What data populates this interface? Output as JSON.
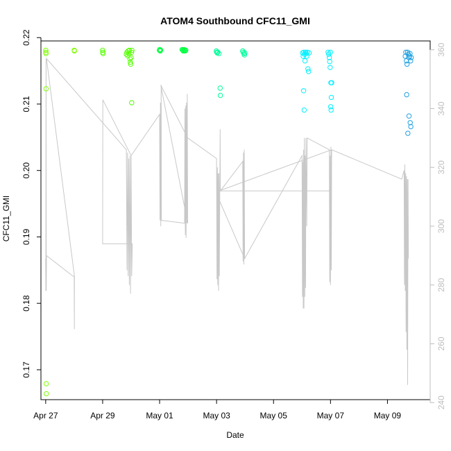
{
  "chart_data": {
    "type": "scatter",
    "title": "ATOM4 Southbound CFC11_GMI",
    "xlabel": "Date",
    "ylabel": "CFC11_GMI",
    "x_axis_type": "date",
    "xlim": [
      "2016-04-26T20:00",
      "2016-05-10T12:00"
    ],
    "ylim": [
      0.1655,
      0.2195
    ],
    "y2lim": [
      241,
      363
    ],
    "x_ticks": [
      "2016-04-27",
      "2016-04-29",
      "2016-05-01",
      "2016-05-03",
      "2016-05-05",
      "2016-05-07",
      "2016-05-09"
    ],
    "x_tick_labels": [
      "Apr 27",
      "Apr 29",
      "May 01",
      "May 03",
      "May 05",
      "May 07",
      "May 09"
    ],
    "y_ticks": [
      0.17,
      0.18,
      0.19,
      0.2,
      0.21,
      0.22
    ],
    "y_tick_labels": [
      "0.17",
      "0.18",
      "0.19",
      "0.20",
      "0.21",
      "0.22"
    ],
    "y2_ticks": [
      240,
      260,
      280,
      300,
      320,
      340,
      360
    ],
    "y2_tick_labels": [
      "240",
      "260",
      "280",
      "300",
      "320",
      "340",
      "360"
    ],
    "point_style": "open-circle",
    "line_color": "#c8c8c8",
    "grid": false,
    "legend": "none",
    "series": [
      {
        "color": "#7fff00",
        "points": [
          [
            "2016-04-27T00:05",
            0.2181
          ],
          [
            "2016-04-27T00:10",
            0.2178
          ],
          [
            "2016-04-27T00:15",
            0.2176
          ],
          [
            "2016-04-27T00:20",
            0.2123
          ],
          [
            "2016-04-27T00:25",
            0.1679
          ],
          [
            "2016-04-27T00:30",
            0.1664
          ],
          [
            "2016-04-28T00:05",
            0.2181
          ],
          [
            "2016-04-28T00:10",
            0.218
          ]
        ]
      },
      {
        "color": "#55ff00",
        "points": [
          [
            "2016-04-29T00:00",
            0.2181
          ],
          [
            "2016-04-29T00:10",
            0.2178
          ],
          [
            "2016-04-29T00:20",
            0.2176
          ],
          [
            "2016-04-29T20:00",
            0.2175
          ],
          [
            "2016-04-29T20:30",
            0.2178
          ],
          [
            "2016-04-29T21:00",
            0.2173
          ],
          [
            "2016-04-29T21:30",
            0.218
          ],
          [
            "2016-04-29T22:00",
            0.2176
          ],
          [
            "2016-04-29T22:30",
            0.2181
          ],
          [
            "2016-04-29T23:00",
            0.2168
          ],
          [
            "2016-04-29T23:20",
            0.2163
          ],
          [
            "2016-04-29T23:40",
            0.216
          ],
          [
            "2016-04-30T00:00",
            0.217
          ],
          [
            "2016-04-30T00:20",
            0.2178
          ],
          [
            "2016-04-30T00:40",
            0.2181
          ],
          [
            "2016-04-30T00:30",
            0.2102
          ]
        ]
      },
      {
        "color": "#00ff40",
        "points": [
          [
            "2016-04-30T23:50",
            0.2181
          ],
          [
            "2016-05-01T00:10",
            0.2182
          ],
          [
            "2016-05-01T00:30",
            0.218
          ],
          [
            "2016-05-01T00:50",
            0.2181
          ],
          [
            "2016-05-01T19:00",
            0.2182
          ],
          [
            "2016-05-01T19:30",
            0.2181
          ],
          [
            "2016-05-01T20:00",
            0.218
          ],
          [
            "2016-05-01T20:30",
            0.2182
          ],
          [
            "2016-05-01T21:00",
            0.2181
          ],
          [
            "2016-05-01T21:30",
            0.218
          ],
          [
            "2016-05-01T22:00",
            0.2181
          ]
        ]
      },
      {
        "color": "#00ff99",
        "points": [
          [
            "2016-05-02T23:50",
            0.218
          ],
          [
            "2016-05-03T00:10",
            0.2178
          ],
          [
            "2016-05-03T00:30",
            0.2177
          ],
          [
            "2016-05-03T01:00",
            0.2178
          ],
          [
            "2016-05-03T02:00",
            0.2176
          ],
          [
            "2016-05-03T03:00",
            0.2124
          ],
          [
            "2016-05-03T03:10",
            0.2113
          ],
          [
            "2016-05-03T22:00",
            0.218
          ],
          [
            "2016-05-03T22:30",
            0.2178
          ],
          [
            "2016-05-03T23:00",
            0.2176
          ],
          [
            "2016-05-03T23:30",
            0.2174
          ],
          [
            "2016-05-03T23:50",
            0.2177
          ]
        ]
      },
      {
        "color": "#00f0ff",
        "points": [
          [
            "2016-05-06T00:30",
            0.2177
          ],
          [
            "2016-05-06T01:00",
            0.2172
          ],
          [
            "2016-05-06T01:30",
            0.2178
          ],
          [
            "2016-05-06T02:00",
            0.2175
          ],
          [
            "2016-05-06T02:30",
            0.2165
          ],
          [
            "2016-05-06T03:00",
            0.2178
          ],
          [
            "2016-05-06T03:30",
            0.2176
          ],
          [
            "2016-05-06T04:00",
            0.2172
          ],
          [
            "2016-05-06T04:30",
            0.2178
          ],
          [
            "2016-05-06T05:00",
            0.2153
          ],
          [
            "2016-05-06T05:30",
            0.2149
          ],
          [
            "2016-05-06T01:20",
            0.212
          ],
          [
            "2016-05-06T01:50",
            0.2091
          ],
          [
            "2016-05-06T06:00",
            0.2177
          ],
          [
            "2016-05-06T22:00",
            0.2178
          ],
          [
            "2016-05-06T22:30",
            0.2175
          ],
          [
            "2016-05-06T23:00",
            0.217
          ],
          [
            "2016-05-06T23:20",
            0.2164
          ],
          [
            "2016-05-06T23:40",
            0.2155
          ],
          [
            "2016-05-07T00:00",
            0.2178
          ],
          [
            "2016-05-07T00:20",
            0.2132
          ],
          [
            "2016-05-07T00:40",
            0.211
          ],
          [
            "2016-05-07T00:10",
            0.2096
          ],
          [
            "2016-05-07T00:30",
            0.2091
          ],
          [
            "2016-05-07T01:00",
            0.2132
          ]
        ]
      },
      {
        "color": "#1fa0e0",
        "points": [
          [
            "2016-05-09T15:00",
            0.2172
          ],
          [
            "2016-05-09T15:30",
            0.2178
          ],
          [
            "2016-05-09T16:00",
            0.2165
          ],
          [
            "2016-05-09T16:30",
            0.216
          ],
          [
            "2016-05-09T17:00",
            0.2178
          ],
          [
            "2016-05-09T17:30",
            0.2175
          ],
          [
            "2016-05-09T18:00",
            0.217
          ],
          [
            "2016-05-09T18:30",
            0.2172
          ],
          [
            "2016-05-09T19:00",
            0.2176
          ],
          [
            "2016-05-09T19:30",
            0.2165
          ],
          [
            "2016-05-09T20:00",
            0.217
          ],
          [
            "2016-05-09T16:10",
            0.2114
          ],
          [
            "2016-05-09T18:10",
            0.2082
          ],
          [
            "2016-05-09T19:10",
            0.2072
          ],
          [
            "2016-05-09T19:40",
            0.2066
          ],
          [
            "2016-05-09T17:10",
            0.2056
          ]
        ]
      }
    ],
    "secondary_line": {
      "points": [
        [
          "2016-04-27T00:00",
          289
        ],
        [
          "2016-04-27T00:10",
          278
        ],
        [
          "2016-04-27T00:20",
          357
        ],
        [
          "2016-04-27T00:30",
          278
        ],
        [
          "2016-04-27T00:40",
          290
        ],
        [
          "2016-04-27T23:00",
          283
        ],
        [
          "2016-04-28T00:00",
          283
        ],
        [
          "2016-04-28T00:10",
          265
        ],
        [
          "2016-04-28T00:15",
          283
        ],
        [
          "2016-04-27T00:40",
          357
        ],
        [
          "2016-04-29T20:00",
          326
        ],
        [
          "2016-04-29T20:30",
          285
        ],
        [
          "2016-04-29T21:00",
          325
        ],
        [
          "2016-04-29T21:30",
          283
        ],
        [
          "2016-04-29T22:00",
          323
        ],
        [
          "2016-04-29T22:30",
          280
        ],
        [
          "2016-04-29T23:00",
          324
        ],
        [
          "2016-04-29T23:30",
          277
        ],
        [
          "2016-04-30T00:00",
          324
        ],
        [
          "2016-04-30T00:30",
          283
        ],
        [
          "2016-04-30T01:00",
          294
        ],
        [
          "2016-04-29T00:00",
          294
        ],
        [
          "2016-04-29T00:10",
          343
        ],
        [
          "2016-04-30T00:00",
          324
        ],
        [
          "2016-05-01T00:00",
          338
        ],
        [
          "2016-05-01T00:20",
          302
        ],
        [
          "2016-05-01T00:40",
          342
        ],
        [
          "2016-05-01T01:00",
          300
        ],
        [
          "2016-05-01T01:20",
          348
        ],
        [
          "2016-05-01T01:30",
          302
        ],
        [
          "2016-05-01T21:00",
          301
        ],
        [
          "2016-05-01T21:20",
          340
        ],
        [
          "2016-05-01T21:40",
          297
        ],
        [
          "2016-05-01T22:00",
          341
        ],
        [
          "2016-05-01T22:20",
          296
        ],
        [
          "2016-05-01T22:40",
          342
        ],
        [
          "2016-05-01T23:00",
          301
        ],
        [
          "2016-05-01T23:20",
          345
        ],
        [
          "2016-05-01T23:40",
          301
        ],
        [
          "2016-05-01T01:00",
          348
        ],
        [
          "2016-05-01T23:40",
          330
        ],
        [
          "2016-05-03T00:00",
          323
        ],
        [
          "2016-05-03T00:20",
          282
        ],
        [
          "2016-05-03T00:40",
          320
        ],
        [
          "2016-05-03T01:00",
          280
        ],
        [
          "2016-05-03T01:20",
          318
        ],
        [
          "2016-05-03T01:40",
          278
        ],
        [
          "2016-05-03T02:00",
          318
        ],
        [
          "2016-05-03T02:20",
          283
        ],
        [
          "2016-05-03T03:00",
          333
        ],
        [
          "2016-05-03T03:10",
          312
        ],
        [
          "2016-05-03T22:00",
          322
        ],
        [
          "2016-05-03T22:20",
          288
        ],
        [
          "2016-05-03T22:40",
          325
        ],
        [
          "2016-05-03T23:00",
          287
        ],
        [
          "2016-05-03T23:20",
          326
        ],
        [
          "2016-05-03T23:40",
          289
        ],
        [
          "2016-05-03T00:00",
          311
        ],
        [
          "2016-05-03T23:40",
          289
        ],
        [
          "2016-05-06T00:00",
          324
        ],
        [
          "2016-05-06T00:20",
          276
        ],
        [
          "2016-05-06T00:40",
          322
        ],
        [
          "2016-05-06T01:00",
          272
        ],
        [
          "2016-05-06T01:20",
          326
        ],
        [
          "2016-05-06T01:40",
          272
        ],
        [
          "2016-05-06T02:00",
          330
        ],
        [
          "2016-05-06T02:20",
          276
        ],
        [
          "2016-05-06T02:40",
          324
        ],
        [
          "2016-05-06T03:00",
          279
        ],
        [
          "2016-05-06T03:20",
          330
        ],
        [
          "2016-05-06T04:00",
          300
        ],
        [
          "2016-05-06T04:20",
          330
        ],
        [
          "2016-05-06T23:00",
          326
        ],
        [
          "2016-05-06T23:20",
          281
        ],
        [
          "2016-05-06T23:40",
          324
        ],
        [
          "2016-05-07T00:00",
          280
        ],
        [
          "2016-05-07T00:20",
          327
        ],
        [
          "2016-05-07T00:40",
          285
        ],
        [
          "2016-05-07T01:00",
          326
        ],
        [
          "2016-05-06T23:00",
          312
        ],
        [
          "2016-05-05T00:00",
          312
        ],
        [
          "2016-05-03T02:00",
          312
        ],
        [
          "2016-05-07T01:00",
          326
        ],
        [
          "2016-05-09T12:00",
          316
        ],
        [
          "2016-05-09T14:00",
          319
        ],
        [
          "2016-05-09T14:20",
          280
        ],
        [
          "2016-05-09T14:40",
          321
        ],
        [
          "2016-05-09T15:00",
          278
        ],
        [
          "2016-05-09T15:20",
          318
        ],
        [
          "2016-05-09T15:40",
          264
        ],
        [
          "2016-05-09T16:00",
          317
        ],
        [
          "2016-05-09T16:20",
          258
        ],
        [
          "2016-05-09T16:40",
          316
        ],
        [
          "2016-05-09T17:00",
          246
        ],
        [
          "2016-05-09T17:20",
          316
        ],
        [
          "2016-05-09T17:40",
          289
        ]
      ]
    }
  }
}
